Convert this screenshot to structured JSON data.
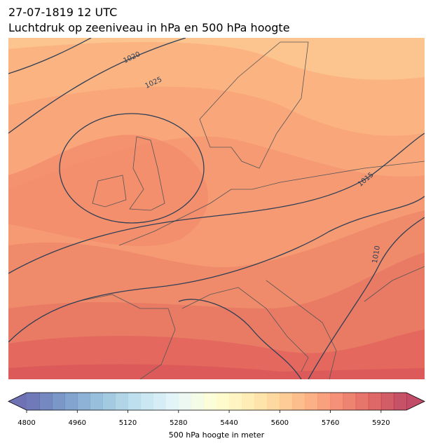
{
  "header": {
    "title": "27-07-1819 12 UTC",
    "subtitle": "Luchtdruk op zeeniveau in hPa en 500 hPa hoogte"
  },
  "map": {
    "contour_labels": [
      "1020",
      "1025",
      "1015",
      "1010"
    ]
  },
  "colorbar": {
    "lim": [
      4800,
      6000
    ],
    "ticks": [
      4800,
      4960,
      5120,
      5280,
      5440,
      5600,
      5760,
      5920
    ],
    "label": "500 hPa hoogte in meter"
  }
}
